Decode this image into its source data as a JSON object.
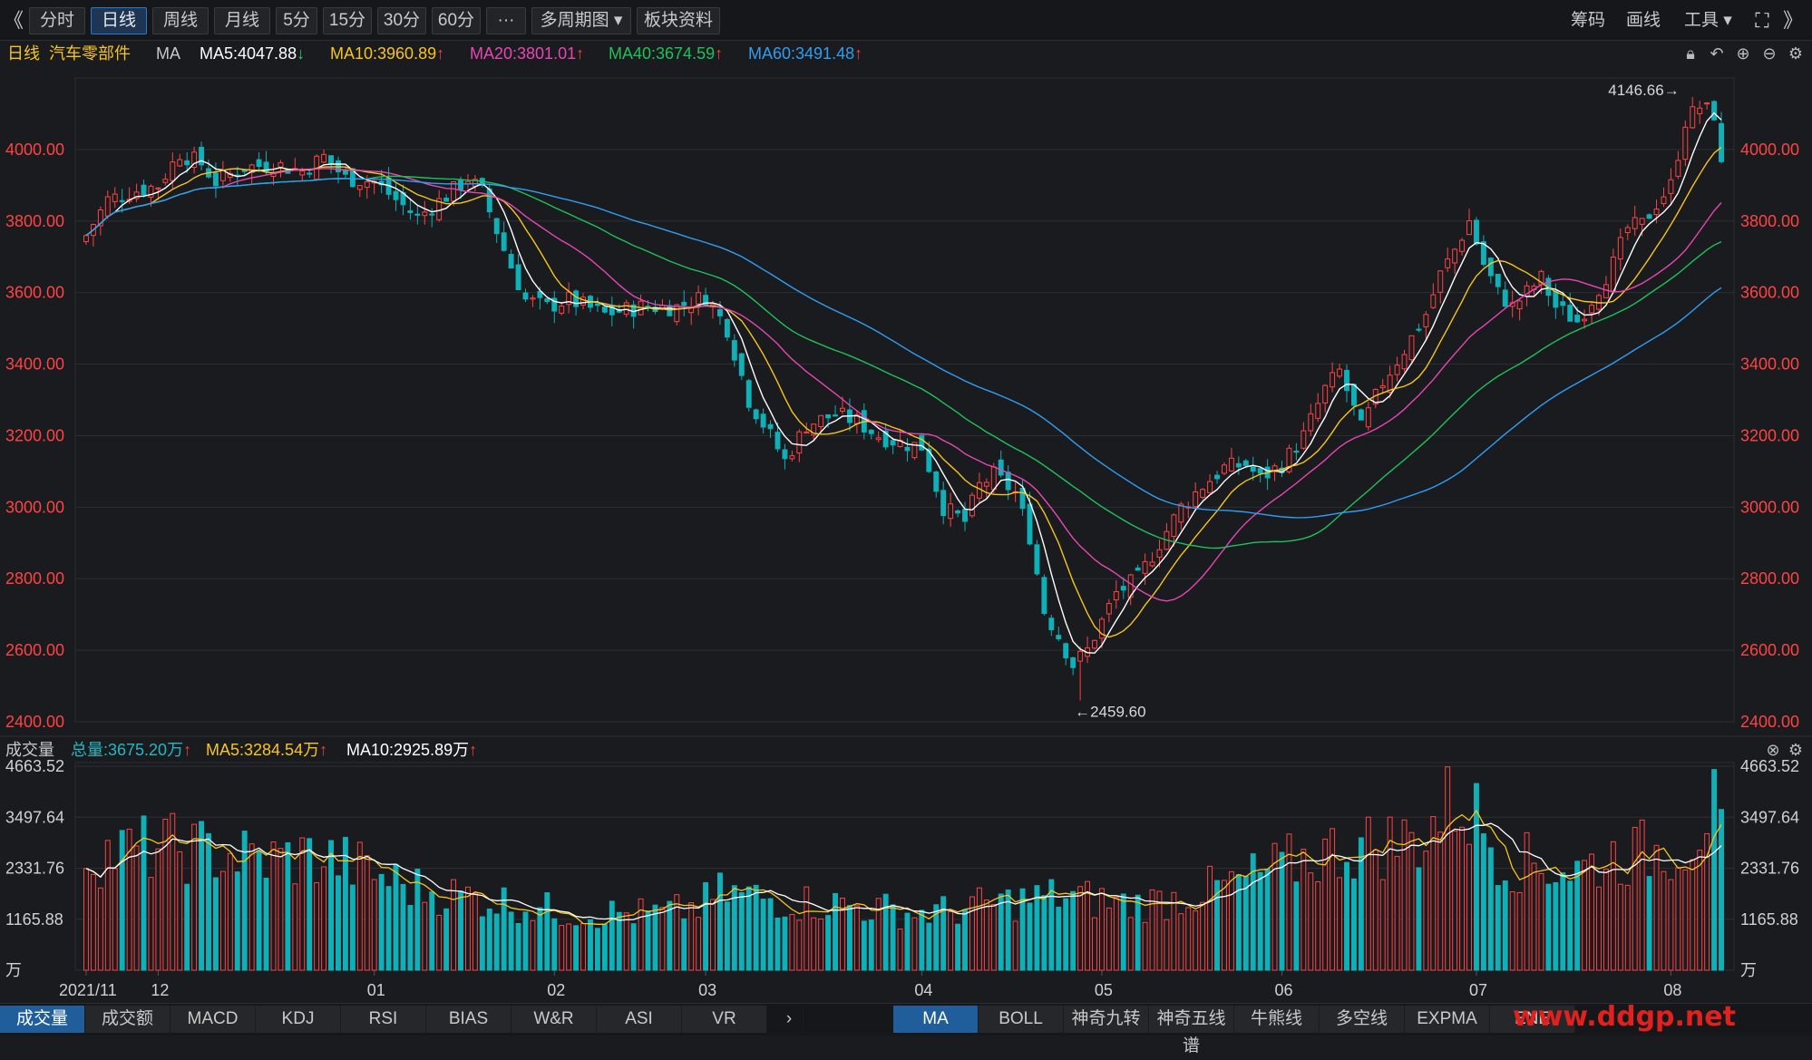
{
  "toolbar": {
    "back_glyph": "《",
    "periods": [
      "分时",
      "日线",
      "周线",
      "月线",
      "5分",
      "15分",
      "30分",
      "60分",
      "···",
      "多周期图 ▾",
      "板块资料"
    ],
    "active_period": "日线",
    "right_items": [
      "筹码",
      "画线",
      "工具 ▾"
    ],
    "right_icons": [
      "fullscreen-icon",
      "expand-right-icon"
    ]
  },
  "price_legend": {
    "period": "日线",
    "symbol": "汽车零部件",
    "indicator": "MA",
    "ma": [
      {
        "label": "MA5:4047.88",
        "dir": "down",
        "color": "#ffffff"
      },
      {
        "label": "MA10:3960.89",
        "dir": "up",
        "color": "#f7c51a"
      },
      {
        "label": "MA20:3801.01",
        "dir": "up",
        "color": "#e846b4"
      },
      {
        "label": "MA40:3674.59",
        "dir": "up",
        "color": "#1ec25a"
      },
      {
        "label": "MA60:3491.48",
        "dir": "up",
        "color": "#2f9ef2"
      }
    ]
  },
  "volume_legend": {
    "title": "成交量",
    "items": [
      {
        "label": "总量:3675.20万",
        "dir": "up",
        "color": "#21b8c2"
      },
      {
        "label": "MA5:3284.54万",
        "dir": "up",
        "color": "#f7c51a"
      },
      {
        "label": "MA10:2925.89万",
        "dir": "up",
        "color": "#ffffff"
      }
    ]
  },
  "colors": {
    "up": "#ff4343",
    "down": "#0fb0b8",
    "grid": "#2c2e33",
    "axis_text": "#ff4343",
    "vol_axis_text": "#d0d0d0"
  },
  "chart_data": {
    "type": "candlestick",
    "ylim": [
      2400,
      4200
    ],
    "y_ticks": [
      "4000.00",
      "3800.00",
      "3600.00",
      "3400.00",
      "3200.00",
      "3000.00",
      "2800.00",
      "2600.00",
      "2400.00"
    ],
    "y_tick_values": [
      4000,
      3800,
      3600,
      3400,
      3200,
      3000,
      2800,
      2600,
      2400
    ],
    "x_labels": [
      "2021/11",
      "12",
      "01",
      "02",
      "03",
      "04",
      "05",
      "06",
      "07",
      "08"
    ],
    "x_label_index": [
      0,
      10,
      40,
      65,
      86,
      116,
      141,
      166,
      193,
      220
    ],
    "annotations": [
      {
        "text": "4146.66→",
        "index": 223,
        "value": 4146.66
      },
      {
        "text": "←2459.60",
        "index": 138,
        "value": 2459.6
      }
    ],
    "close_anchors": [
      [
        0,
        3760
      ],
      [
        3,
        3860
      ],
      [
        6,
        3880
      ],
      [
        10,
        3900
      ],
      [
        13,
        3990
      ],
      [
        16,
        3960
      ],
      [
        18,
        3910
      ],
      [
        22,
        3950
      ],
      [
        26,
        3960
      ],
      [
        30,
        3940
      ],
      [
        33,
        3980
      ],
      [
        36,
        3920
      ],
      [
        40,
        3910
      ],
      [
        43,
        3860
      ],
      [
        46,
        3810
      ],
      [
        50,
        3870
      ],
      [
        53,
        3920
      ],
      [
        55,
        3880
      ],
      [
        58,
        3720
      ],
      [
        61,
        3580
      ],
      [
        64,
        3560
      ],
      [
        67,
        3580
      ],
      [
        72,
        3540
      ],
      [
        77,
        3560
      ],
      [
        82,
        3560
      ],
      [
        86,
        3590
      ],
      [
        89,
        3500
      ],
      [
        92,
        3300
      ],
      [
        95,
        3200
      ],
      [
        97,
        3130
      ],
      [
        100,
        3230
      ],
      [
        104,
        3260
      ],
      [
        107,
        3240
      ],
      [
        110,
        3200
      ],
      [
        113,
        3180
      ],
      [
        116,
        3170
      ],
      [
        119,
        3000
      ],
      [
        122,
        2960
      ],
      [
        124,
        3060
      ],
      [
        126,
        3090
      ],
      [
        129,
        3040
      ],
      [
        131,
        2920
      ],
      [
        133,
        2710
      ],
      [
        135,
        2640
      ],
      [
        137,
        2560
      ],
      [
        139,
        2600
      ],
      [
        141,
        2680
      ],
      [
        143,
        2760
      ],
      [
        146,
        2800
      ],
      [
        149,
        2900
      ],
      [
        152,
        3000
      ],
      [
        155,
        3060
      ],
      [
        158,
        3110
      ],
      [
        161,
        3120
      ],
      [
        163,
        3080
      ],
      [
        166,
        3120
      ],
      [
        169,
        3200
      ],
      [
        172,
        3330
      ],
      [
        174,
        3380
      ],
      [
        177,
        3220
      ],
      [
        180,
        3350
      ],
      [
        183,
        3440
      ],
      [
        186,
        3540
      ],
      [
        188,
        3650
      ],
      [
        190,
        3720
      ],
      [
        192,
        3800
      ],
      [
        194,
        3680
      ],
      [
        196,
        3600
      ],
      [
        198,
        3560
      ],
      [
        200,
        3600
      ],
      [
        202,
        3640
      ],
      [
        204,
        3560
      ],
      [
        207,
        3520
      ],
      [
        209,
        3580
      ],
      [
        212,
        3680
      ],
      [
        214,
        3780
      ],
      [
        216,
        3790
      ],
      [
        218,
        3850
      ],
      [
        220,
        3900
      ],
      [
        222,
        4080
      ],
      [
        224,
        4120
      ],
      [
        226,
        4100
      ],
      [
        227,
        3950
      ]
    ],
    "ma_labels": [
      "MA5",
      "MA10",
      "MA20",
      "MA40",
      "MA60"
    ],
    "volume": {
      "y_ticks": [
        "4663.52",
        "3497.64",
        "2331.76",
        "1165.88",
        "万"
      ],
      "y_tick_values": [
        4663.52,
        3497.64,
        2331.76,
        1165.88,
        0
      ],
      "ylim": [
        0,
        4663.52
      ],
      "anchors": [
        [
          0,
          2650
        ],
        [
          5,
          2700
        ],
        [
          10,
          2800
        ],
        [
          15,
          2750
        ],
        [
          20,
          2650
        ],
        [
          25,
          2500
        ],
        [
          30,
          2600
        ],
        [
          35,
          2500
        ],
        [
          40,
          2200
        ],
        [
          45,
          1900
        ],
        [
          50,
          1750
        ],
        [
          55,
          1650
        ],
        [
          60,
          1500
        ],
        [
          65,
          1350
        ],
        [
          70,
          1300
        ],
        [
          75,
          1300
        ],
        [
          80,
          1280
        ],
        [
          85,
          1450
        ],
        [
          88,
          1750
        ],
        [
          92,
          1700
        ],
        [
          96,
          1600
        ],
        [
          100,
          1550
        ],
        [
          105,
          1500
        ],
        [
          110,
          1400
        ],
        [
          115,
          1300
        ],
        [
          120,
          1350
        ],
        [
          125,
          1500
        ],
        [
          130,
          1600
        ],
        [
          135,
          1700
        ],
        [
          140,
          1600
        ],
        [
          145,
          1500
        ],
        [
          150,
          1600
        ],
        [
          155,
          1800
        ],
        [
          160,
          2000
        ],
        [
          165,
          2300
        ],
        [
          170,
          2600
        ],
        [
          175,
          2800
        ],
        [
          180,
          2900
        ],
        [
          185,
          3000
        ],
        [
          190,
          3900
        ],
        [
          193,
          3500
        ],
        [
          197,
          2500
        ],
        [
          202,
          2400
        ],
        [
          207,
          2300
        ],
        [
          212,
          2600
        ],
        [
          217,
          2700
        ],
        [
          222,
          2900
        ],
        [
          225,
          3600
        ],
        [
          227,
          3675
        ]
      ]
    }
  },
  "bottom_tabs_left": [
    "成交量",
    "成交额",
    "MACD",
    "KDJ",
    "RSI",
    "BIAS",
    "W&R",
    "ASI",
    "VR"
  ],
  "bottom_tabs_right": [
    "MA",
    "BOLL",
    "神奇九转",
    "神奇五线谱",
    "牛熊线",
    "多空线",
    "EXPMA",
    "ENE"
  ],
  "watermark": "www.ddgp.net"
}
